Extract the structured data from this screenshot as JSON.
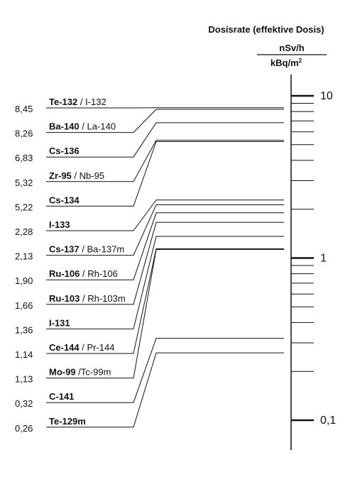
{
  "header": {
    "title": "Dosisrate (effektive Dosis)",
    "unit_numerator": "nSv/h",
    "unit_denominator_base": "kBq/m",
    "unit_denominator_exp": "2"
  },
  "chart_data": {
    "type": "nomogram",
    "scale": "log",
    "axis_range": [
      0.1,
      10
    ],
    "axis_labels": [
      "10",
      "1",
      "0,1"
    ],
    "axis_label_values": [
      10,
      1,
      0.1
    ],
    "nuclides": [
      {
        "bold": "Te-132",
        "normal": " / I-132",
        "value_label": "8,45",
        "value": 8.45
      },
      {
        "bold": "Ba-140",
        "normal": " / La-140",
        "value_label": "8,26",
        "value": 8.26
      },
      {
        "bold": "Cs-136",
        "normal": "",
        "value_label": "6,83",
        "value": 6.83
      },
      {
        "bold": "Zr-95",
        "normal": " / Nb-95",
        "value_label": "5,32",
        "value": 5.32
      },
      {
        "bold": "Cs-134",
        "normal": "",
        "value_label": "5,22",
        "value": 5.22
      },
      {
        "bold": "I-133",
        "normal": "",
        "value_label": "2,28",
        "value": 2.28
      },
      {
        "bold": "Cs-137",
        "normal": " / Ba-137m",
        "value_label": "2,13",
        "value": 2.13
      },
      {
        "bold": "Ru-106",
        "normal": " / Rh-106",
        "value_label": "1,90",
        "value": 1.9
      },
      {
        "bold": "Ru-103",
        "normal": " / Rh-103m",
        "value_label": "1,66",
        "value": 1.66
      },
      {
        "bold": "I-131",
        "normal": "",
        "value_label": "1,36",
        "value": 1.36
      },
      {
        "bold": "Ce-144",
        "normal": " / Pr-144",
        "value_label": "1,14",
        "value": 1.14
      },
      {
        "bold": "Mo-99",
        "normal": " /Tc-99m",
        "value_label": "1,13",
        "value": 1.13
      },
      {
        "bold": "C-141",
        "normal": "",
        "value_label": "0,32",
        "value": 0.32
      },
      {
        "bold": "Te-129m",
        "normal": "",
        "value_label": "0,26",
        "value": 0.26
      }
    ]
  }
}
